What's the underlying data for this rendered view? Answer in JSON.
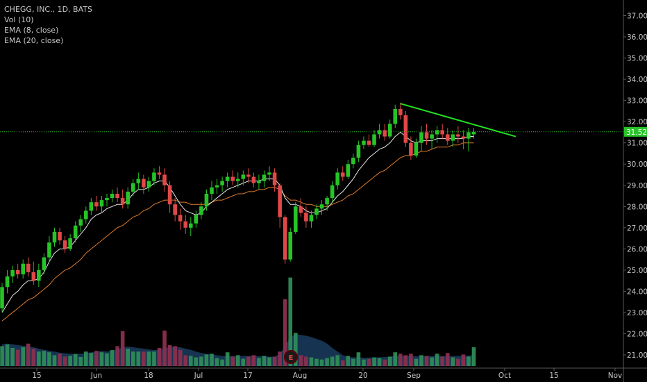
{
  "legend": {
    "symbol_line": "CHEGG, INC., 1D, BATS",
    "volume": "Vol (10)",
    "ema8": "EMA (8, close)",
    "ema20": "EMA (20, close)"
  },
  "chart_data": {
    "type": "candlestick",
    "title": "CHEGG, INC., 1D, BATS",
    "ylim": [
      20.5,
      37.5
    ],
    "y_ticks": [
      "37.00",
      "36.00",
      "35.00",
      "34.00",
      "33.00",
      "32.00",
      "31.00",
      "30.00",
      "29.00",
      "28.00",
      "27.00",
      "26.00",
      "25.00",
      "24.00",
      "23.00",
      "22.00",
      "21.00"
    ],
    "x_labels": [
      "15",
      "Jun",
      "18",
      "Jul",
      "17",
      "Aug",
      "20",
      "Sep",
      "Oct",
      "15",
      "Nov"
    ],
    "last_price": "31.52",
    "horizontal_line_value": 31.52,
    "earnings_marker": "E",
    "indicators": [
      "Vol (10)",
      "EMA (8, close)",
      "EMA (20, close)"
    ],
    "candles": [
      [
        23.2,
        24.4,
        23.0,
        24.2
      ],
      [
        24.2,
        25.0,
        23.9,
        24.7
      ],
      [
        24.7,
        25.2,
        24.4,
        25.0
      ],
      [
        25.0,
        25.3,
        24.6,
        24.8
      ],
      [
        24.8,
        25.5,
        24.6,
        25.3
      ],
      [
        25.3,
        25.6,
        24.7,
        24.9
      ],
      [
        24.9,
        25.4,
        24.3,
        24.5
      ],
      [
        24.5,
        25.3,
        24.2,
        25.0
      ],
      [
        25.0,
        25.8,
        24.8,
        25.6
      ],
      [
        25.6,
        26.6,
        25.4,
        26.3
      ],
      [
        26.3,
        27.0,
        26.1,
        26.8
      ],
      [
        26.8,
        27.0,
        26.2,
        26.4
      ],
      [
        26.4,
        26.6,
        25.8,
        26.0
      ],
      [
        26.0,
        26.7,
        25.9,
        26.5
      ],
      [
        26.5,
        27.3,
        26.3,
        27.1
      ],
      [
        27.1,
        27.6,
        26.8,
        27.4
      ],
      [
        27.4,
        28.0,
        27.2,
        27.8
      ],
      [
        27.8,
        28.4,
        27.6,
        28.2
      ],
      [
        28.2,
        28.5,
        27.8,
        28.0
      ],
      [
        28.0,
        28.5,
        27.7,
        28.3
      ],
      [
        28.3,
        28.6,
        28.0,
        28.4
      ],
      [
        28.4,
        28.8,
        28.2,
        28.6
      ],
      [
        28.6,
        28.9,
        28.2,
        28.4
      ],
      [
        28.4,
        28.8,
        27.9,
        28.1
      ],
      [
        28.1,
        28.9,
        27.9,
        28.7
      ],
      [
        28.7,
        29.3,
        28.5,
        29.1
      ],
      [
        29.1,
        29.6,
        28.8,
        29.3
      ],
      [
        29.3,
        29.5,
        28.6,
        28.9
      ],
      [
        28.9,
        29.4,
        28.7,
        29.2
      ],
      [
        29.2,
        29.8,
        29.0,
        29.6
      ],
      [
        29.6,
        29.9,
        29.3,
        29.5
      ],
      [
        29.5,
        29.8,
        28.7,
        29.0
      ],
      [
        29.0,
        29.2,
        27.7,
        28.1
      ],
      [
        28.1,
        28.4,
        27.3,
        27.6
      ],
      [
        27.6,
        27.9,
        26.9,
        27.3
      ],
      [
        27.3,
        27.6,
        26.7,
        27.0
      ],
      [
        27.0,
        27.5,
        26.6,
        27.2
      ],
      [
        27.2,
        27.8,
        27.0,
        27.6
      ],
      [
        27.6,
        28.2,
        27.4,
        28.0
      ],
      [
        28.0,
        28.8,
        27.8,
        28.6
      ],
      [
        28.6,
        29.2,
        28.3,
        28.9
      ],
      [
        28.9,
        29.3,
        28.6,
        29.0
      ],
      [
        29.0,
        29.4,
        28.7,
        29.2
      ],
      [
        29.2,
        29.6,
        28.9,
        29.4
      ],
      [
        29.4,
        29.7,
        29.0,
        29.2
      ],
      [
        29.2,
        29.6,
        28.9,
        29.3
      ],
      [
        29.3,
        29.7,
        29.0,
        29.5
      ],
      [
        29.5,
        29.8,
        29.1,
        29.4
      ],
      [
        29.4,
        29.6,
        28.9,
        29.1
      ],
      [
        29.1,
        29.5,
        28.8,
        29.2
      ],
      [
        29.2,
        29.7,
        28.9,
        29.5
      ],
      [
        29.5,
        29.9,
        29.2,
        29.6
      ],
      [
        29.6,
        29.8,
        28.7,
        29.0
      ],
      [
        29.0,
        29.1,
        27.0,
        27.5
      ],
      [
        27.5,
        27.6,
        25.3,
        25.5
      ],
      [
        25.5,
        27.0,
        25.4,
        26.8
      ],
      [
        26.8,
        28.2,
        26.7,
        28.0
      ],
      [
        28.0,
        28.4,
        27.5,
        27.7
      ],
      [
        27.7,
        28.0,
        27.0,
        27.3
      ],
      [
        27.3,
        27.8,
        27.0,
        27.6
      ],
      [
        27.6,
        28.1,
        27.4,
        27.9
      ],
      [
        27.9,
        28.3,
        27.6,
        28.1
      ],
      [
        28.1,
        28.5,
        27.8,
        28.4
      ],
      [
        28.4,
        29.2,
        28.2,
        29.0
      ],
      [
        29.0,
        29.8,
        28.8,
        29.6
      ],
      [
        29.6,
        29.9,
        29.2,
        29.4
      ],
      [
        29.4,
        30.2,
        29.3,
        30.0
      ],
      [
        30.0,
        30.5,
        29.8,
        30.3
      ],
      [
        30.3,
        31.1,
        30.1,
        30.9
      ],
      [
        30.9,
        31.3,
        30.7,
        31.1
      ],
      [
        31.1,
        31.4,
        30.8,
        30.9
      ],
      [
        30.9,
        31.6,
        30.8,
        31.4
      ],
      [
        31.4,
        31.9,
        31.2,
        31.6
      ],
      [
        31.6,
        31.9,
        31.1,
        31.3
      ],
      [
        31.3,
        32.1,
        31.2,
        31.9
      ],
      [
        31.9,
        32.8,
        31.7,
        32.6
      ],
      [
        32.6,
        32.9,
        32.1,
        32.3
      ],
      [
        32.3,
        32.5,
        30.8,
        31.0
      ],
      [
        31.0,
        31.3,
        30.2,
        30.4
      ],
      [
        30.4,
        31.2,
        30.3,
        31.0
      ],
      [
        31.0,
        31.8,
        30.6,
        31.5
      ],
      [
        31.5,
        31.9,
        30.9,
        31.2
      ],
      [
        31.2,
        31.6,
        30.7,
        31.4
      ],
      [
        31.4,
        31.8,
        31.0,
        31.6
      ],
      [
        31.6,
        31.9,
        31.2,
        31.4
      ],
      [
        31.4,
        31.7,
        30.9,
        31.1
      ],
      [
        31.1,
        31.6,
        30.8,
        31.4
      ],
      [
        31.4,
        31.8,
        31.0,
        31.3
      ],
      [
        31.3,
        31.6,
        30.7,
        31.2
      ],
      [
        31.2,
        31.7,
        30.6,
        31.5
      ],
      [
        31.4,
        31.7,
        31.2,
        31.52
      ]
    ],
    "ema8": [
      23.0,
      23.4,
      23.8,
      24.0,
      24.3,
      24.5,
      24.5,
      24.6,
      24.9,
      25.4,
      25.8,
      26.0,
      26.0,
      26.1,
      26.4,
      26.7,
      27.0,
      27.4,
      27.6,
      27.7,
      27.9,
      28.0,
      28.1,
      28.1,
      28.3,
      28.6,
      28.8,
      28.8,
      28.9,
      29.1,
      29.2,
      29.2,
      28.9,
      28.5,
      28.1,
      27.8,
      27.7,
      27.6,
      27.7,
      28.0,
      28.2,
      28.4,
      28.6,
      28.8,
      28.9,
      29.0,
      29.1,
      29.2,
      29.2,
      29.2,
      29.3,
      29.3,
      29.3,
      29.0,
      28.4,
      28.1,
      28.1,
      28.0,
      27.8,
      27.7,
      27.7,
      27.8,
      27.9,
      28.2,
      28.5,
      28.7,
      29.0,
      29.3,
      29.7,
      30.0,
      30.3,
      30.5,
      30.7,
      30.8,
      31.0,
      31.3,
      31.5,
      31.3,
      31.1,
      31.0,
      31.1,
      31.1,
      31.1,
      31.2,
      31.2,
      31.2,
      31.2,
      31.2,
      31.2,
      31.3,
      31.3
    ],
    "ema20": [
      22.6,
      22.8,
      23.0,
      23.2,
      23.4,
      23.6,
      23.7,
      23.9,
      24.1,
      24.3,
      24.6,
      24.8,
      25.0,
      25.1,
      25.3,
      25.5,
      25.8,
      26.0,
      26.2,
      26.4,
      26.6,
      26.8,
      27.0,
      27.1,
      27.3,
      27.5,
      27.6,
      27.8,
      27.9,
      28.1,
      28.2,
      28.3,
      28.3,
      28.3,
      28.2,
      28.2,
      28.1,
      28.1,
      28.1,
      28.1,
      28.2,
      28.3,
      28.3,
      28.4,
      28.5,
      28.6,
      28.6,
      28.7,
      28.7,
      28.8,
      28.8,
      28.9,
      28.9,
      28.8,
      28.5,
      28.3,
      28.3,
      28.2,
      28.1,
      28.1,
      28.0,
      28.0,
      28.0,
      28.1,
      28.2,
      28.3,
      28.5,
      28.6,
      28.8,
      29.0,
      29.2,
      29.4,
      29.6,
      29.7,
      29.9,
      30.1,
      30.3,
      30.4,
      30.4,
      30.5,
      30.6,
      30.6,
      30.7,
      30.8,
      30.8,
      30.8,
      30.9,
      30.9,
      31.0,
      31.0,
      31.0
    ],
    "volume": [
      0.55,
      0.6,
      0.5,
      0.45,
      0.52,
      0.62,
      0.48,
      0.4,
      0.42,
      0.38,
      0.3,
      0.34,
      0.26,
      0.28,
      0.33,
      0.25,
      0.4,
      0.36,
      0.42,
      0.38,
      0.35,
      0.44,
      0.55,
      0.97,
      0.48,
      0.4,
      0.4,
      0.4,
      0.4,
      0.4,
      0.5,
      0.98,
      0.58,
      0.55,
      0.45,
      0.3,
      0.28,
      0.24,
      0.26,
      0.32,
      0.34,
      0.22,
      0.18,
      0.38,
      0.26,
      0.3,
      0.2,
      0.26,
      0.3,
      0.22,
      0.28,
      0.24,
      0.26,
      0.4,
      1.85,
      2.45,
      0.92,
      0.3,
      0.26,
      0.24,
      0.2,
      0.18,
      0.22,
      0.26,
      0.3,
      0.16,
      0.28,
      0.2,
      0.38,
      0.18,
      0.2,
      0.24,
      0.22,
      0.18,
      0.26,
      0.38,
      0.34,
      0.3,
      0.34,
      0.2,
      0.3,
      0.28,
      0.24,
      0.34,
      0.26,
      0.36,
      0.24,
      0.2,
      0.32,
      0.26,
      0.52
    ],
    "volume_ma": [
      0.6,
      0.62,
      0.6,
      0.58,
      0.56,
      0.55,
      0.52,
      0.48,
      0.45,
      0.42,
      0.4,
      0.37,
      0.35,
      0.34,
      0.34,
      0.34,
      0.36,
      0.38,
      0.4,
      0.42,
      0.4,
      0.42,
      0.46,
      0.52,
      0.54,
      0.52,
      0.5,
      0.48,
      0.46,
      0.44,
      0.45,
      0.5,
      0.52,
      0.54,
      0.52,
      0.48,
      0.45,
      0.4,
      0.36,
      0.34,
      0.32,
      0.3,
      0.28,
      0.28,
      0.28,
      0.28,
      0.28,
      0.28,
      0.28,
      0.27,
      0.27,
      0.26,
      0.26,
      0.34,
      0.55,
      0.8,
      0.88,
      0.86,
      0.84,
      0.8,
      0.75,
      0.7,
      0.62,
      0.5,
      0.4,
      0.3,
      0.25,
      0.24,
      0.24,
      0.23,
      0.23,
      0.24,
      0.24,
      0.25,
      0.26,
      0.28,
      0.28,
      0.28,
      0.28,
      0.27,
      0.27,
      0.28,
      0.28,
      0.28,
      0.28,
      0.28,
      0.28,
      0.28,
      0.28,
      0.29,
      0.3
    ],
    "trendline": {
      "from_bar": 76,
      "from_price": 32.85,
      "to_bar": 98,
      "to_price": 31.3
    }
  },
  "colors": {
    "background": "#000000",
    "up": "#26c426",
    "down": "#e04848",
    "vol_up": "#2e8b57",
    "vol_down": "#8b2f4f",
    "vol_ma_fill": "#183a5a",
    "ema8": "#e6e6e6",
    "ema20": "#e07b2a",
    "trendline": "#22e022",
    "price_line": "#27c427",
    "axis_text": "#c8c8c8"
  }
}
